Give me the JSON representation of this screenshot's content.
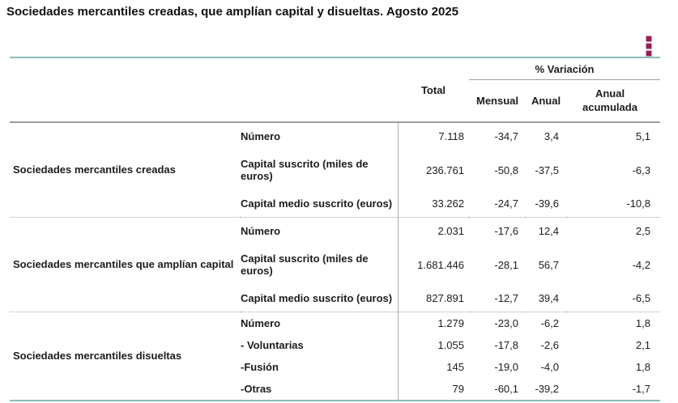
{
  "page": {
    "title": "Sociedades mercantiles creadas, que amplían capital y disueltas. Agosto 2025"
  },
  "menu": {
    "icon": "kebab-menu-icon",
    "color": "#9a1c4d"
  },
  "colors": {
    "accent_teal_rule": "#8cbcb8",
    "gray_rule": "#9e9e9e",
    "text": "#1c1c1c"
  },
  "table": {
    "headers": {
      "total": "Total",
      "variation_group": "% Variación",
      "monthly": "Mensual",
      "annual": "Anual",
      "annual_accumulated": "Anual acumulada"
    },
    "groups": [
      {
        "label": "Sociedades mercantiles creadas",
        "rows": [
          {
            "concept": "Número",
            "total": "7.118",
            "monthly": "-34,7",
            "annual": "3,4",
            "annual_accumulated": "5,1"
          },
          {
            "concept": "Capital suscrito (miles de euros)",
            "total": "236.761",
            "monthly": "-50,8",
            "annual": "-37,5",
            "annual_accumulated": "-6,3"
          },
          {
            "concept": "Capital medio suscrito (euros)",
            "total": "33.262",
            "monthly": "-24,7",
            "annual": "-39,6",
            "annual_accumulated": "-10,8"
          }
        ]
      },
      {
        "label": "Sociedades mercantiles que amplían capital",
        "rows": [
          {
            "concept": "Número",
            "total": "2.031",
            "monthly": "-17,6",
            "annual": "12,4",
            "annual_accumulated": "2,5"
          },
          {
            "concept": "Capital suscrito (miles de euros)",
            "total": "1.681.446",
            "monthly": "-28,1",
            "annual": "56,7",
            "annual_accumulated": "-4,2"
          },
          {
            "concept": "Capital medio suscrito (euros)",
            "total": "827.891",
            "monthly": "-12,7",
            "annual": "39,4",
            "annual_accumulated": "-6,5"
          }
        ]
      },
      {
        "label": "Sociedades mercantiles disueltas",
        "rows": [
          {
            "concept": "Número",
            "total": "1.279",
            "monthly": "-23,0",
            "annual": "-6,2",
            "annual_accumulated": "1,8"
          },
          {
            "concept": "- Voluntarias",
            "total": "1.055",
            "monthly": "-17,8",
            "annual": "-2,6",
            "annual_accumulated": "2,1"
          },
          {
            "concept": "-Fusión",
            "total": "145",
            "monthly": "-19,0",
            "annual": "-4,0",
            "annual_accumulated": "1,8"
          },
          {
            "concept": "-Otras",
            "total": "79",
            "monthly": "-60,1",
            "annual": "-39,2",
            "annual_accumulated": "-1,7"
          }
        ]
      }
    ]
  }
}
